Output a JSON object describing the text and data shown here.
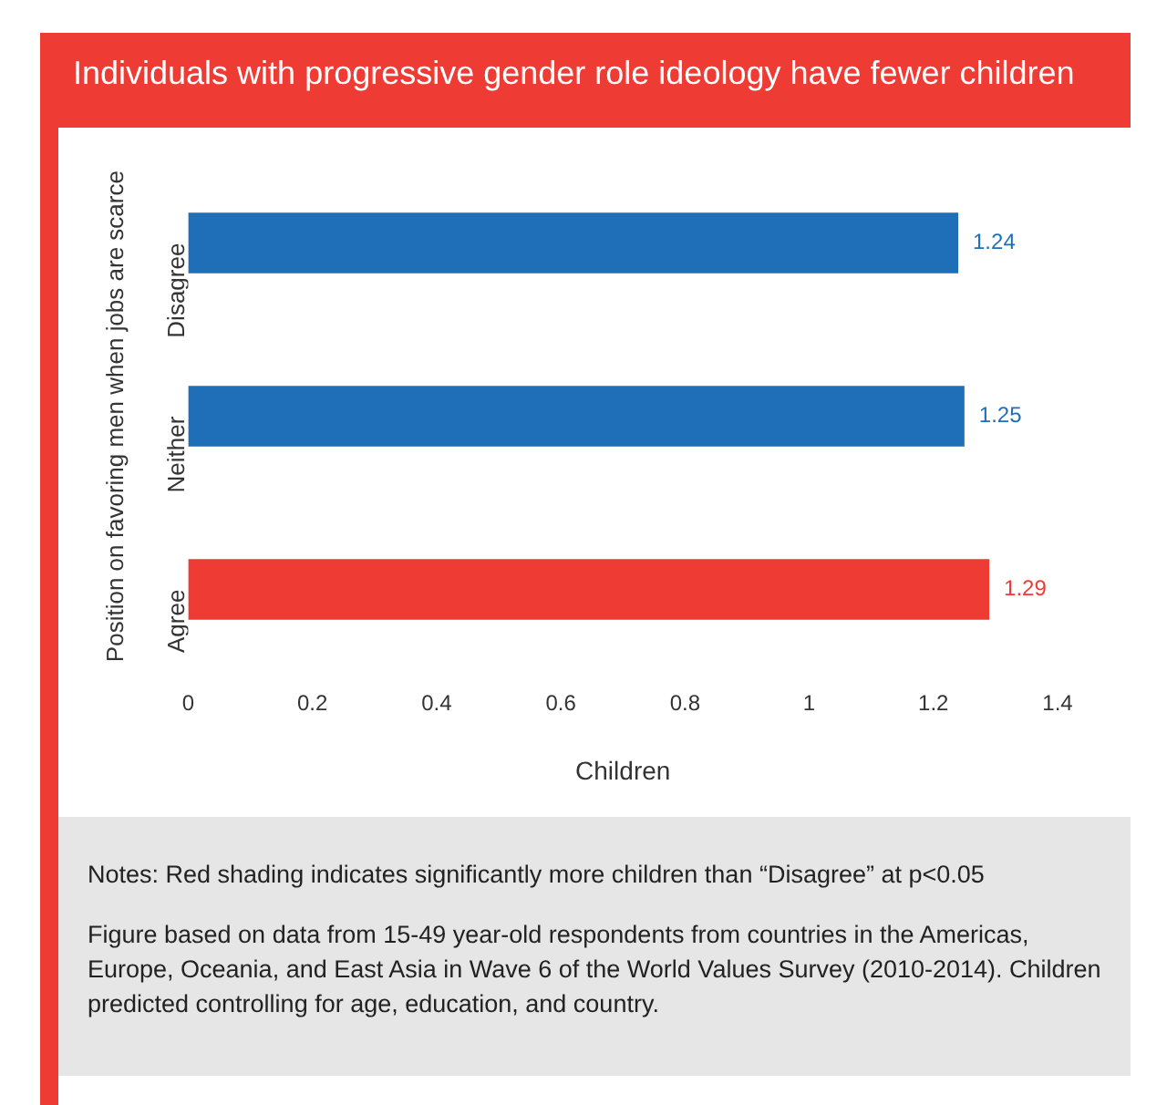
{
  "chart_data": {
    "type": "bar",
    "orientation": "horizontal",
    "title": "Individuals with progressive gender role ideology have fewer children",
    "categories": [
      "Disagree",
      "Neither",
      "Agree"
    ],
    "values": [
      1.24,
      1.25,
      1.29
    ],
    "colors": [
      "#1f6fb8",
      "#1f6fb8",
      "#ee3b33"
    ],
    "xlim": [
      0,
      1.4
    ],
    "xticks": [
      0,
      0.2,
      0.4,
      0.6,
      0.8,
      1,
      1.2,
      1.4
    ],
    "xlabel": "Children",
    "ylabel": "Position on favoring men when jobs are scarce",
    "grid": false,
    "legend": false,
    "data_labels": true,
    "annotations": [
      "Notes: Red shading indicates significantly more children than “Disagree” at p<0.05",
      "Figure based on data from 15-49 year-old respondents from countries in the Americas, Europe, Oceania, and East Asia in Wave 6 of the World Values Survey (2010-2014). Children predicted controlling for age, education, and country."
    ]
  }
}
